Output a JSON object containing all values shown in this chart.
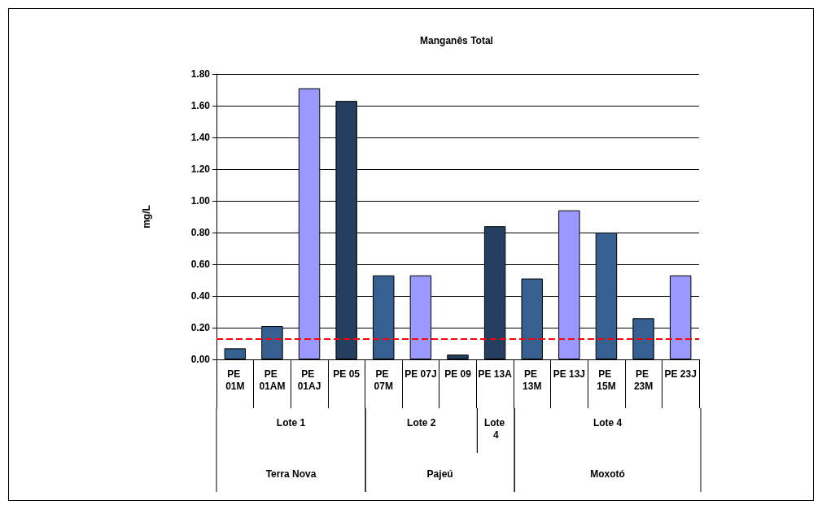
{
  "chart_data": {
    "type": "bar",
    "title": "Manganês Total",
    "ylabel": "mg/L",
    "categories": [
      "PE 01M",
      "PE 01AM",
      "PE 01AJ",
      "PE 05",
      "PE 07M",
      "PE 07J",
      "PE 09",
      "PE 13A",
      "PE 13M",
      "PE 13J",
      "PE 15M",
      "PE 23M",
      "PE 23J"
    ],
    "values": [
      0.07,
      0.21,
      1.71,
      1.63,
      0.53,
      0.53,
      0.03,
      0.84,
      0.51,
      0.94,
      0.8,
      0.26,
      0.53
    ],
    "colors": [
      "#366092",
      "#366092",
      "#9999ff",
      "#243f60",
      "#366092",
      "#9999ff",
      "#243f60",
      "#243f60",
      "#366092",
      "#9999ff",
      "#366092",
      "#366092",
      "#9999ff"
    ],
    "ylim": [
      0,
      1.8
    ],
    "yticks": [
      {
        "value": 0,
        "label": "0.00"
      },
      {
        "value": 0.2,
        "label": "0.20"
      },
      {
        "value": 0.4,
        "label": "0.40"
      },
      {
        "value": 0.6,
        "label": "0.60"
      },
      {
        "value": 0.8,
        "label": "0.80"
      },
      {
        "value": 1.0,
        "label": "1.00"
      },
      {
        "value": 1.2,
        "label": "1.20"
      },
      {
        "value": 1.4,
        "label": "1.40"
      },
      {
        "value": 1.6,
        "label": "1.60"
      },
      {
        "value": 1.8,
        "label": "1.80"
      }
    ],
    "grid": "y",
    "ref_lines": [
      {
        "axis": "y",
        "value": 0.13,
        "color": "#ff0000",
        "line_style": "dashed"
      }
    ],
    "annotations": [
      "Lote 1",
      "Lote 2",
      "Lote 4",
      "Lote 4",
      "Terra Nova",
      "Pajeú",
      "Moxotó"
    ]
  }
}
